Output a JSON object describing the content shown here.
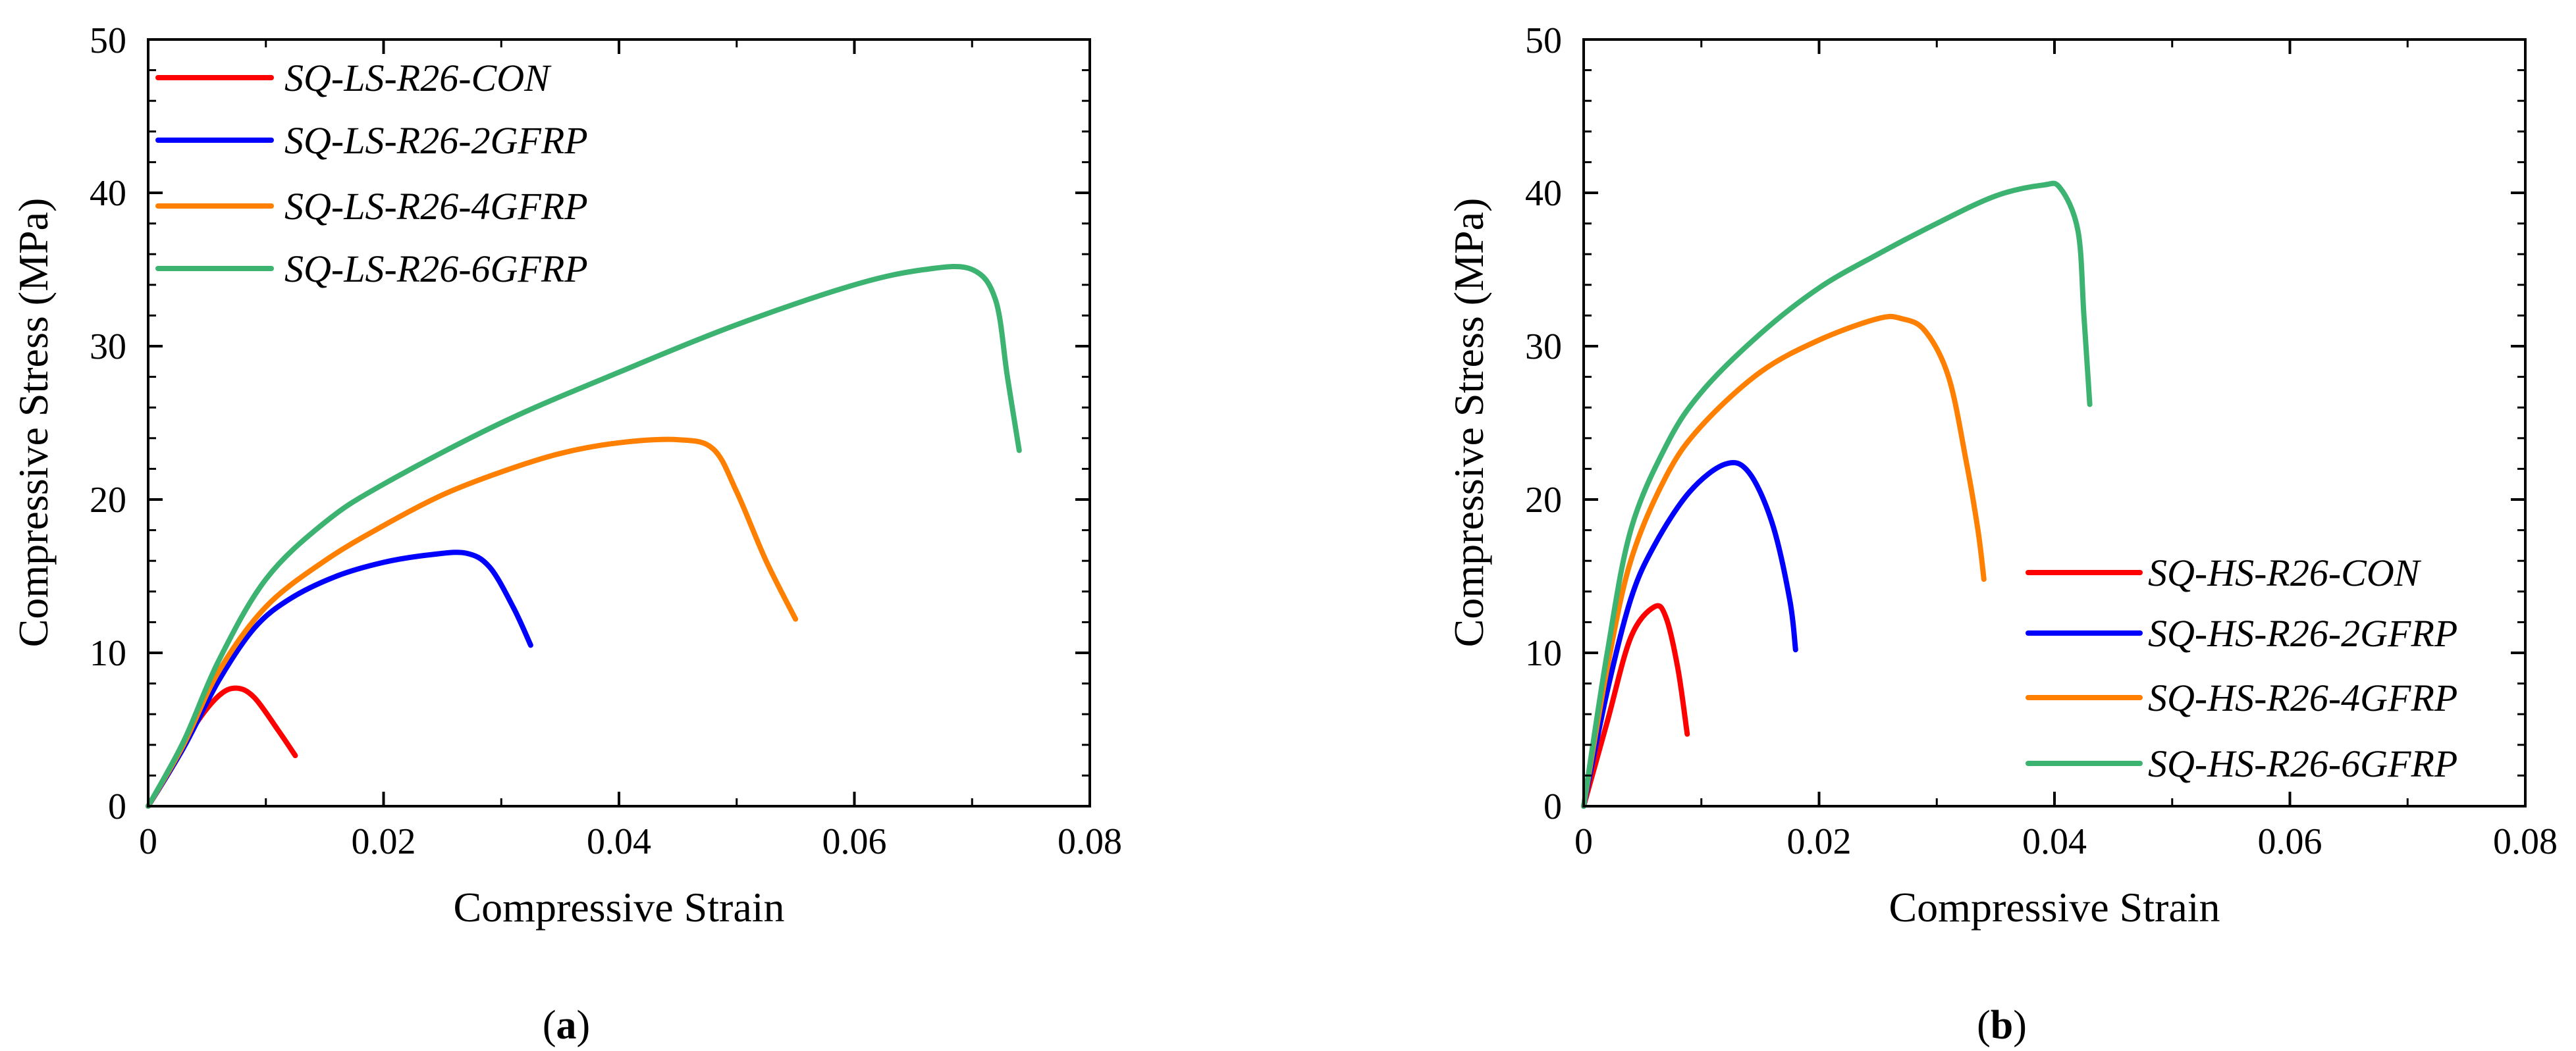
{
  "chart_data": [
    {
      "type": "line",
      "panel": "a",
      "caption": "a",
      "xlabel": "Compressive Strain",
      "ylabel": "Compressive Stress (MPa)",
      "xlim": [
        0,
        0.08
      ],
      "ylim": [
        0,
        50
      ],
      "xticks": [
        0,
        0.02,
        0.04,
        0.06,
        0.08
      ],
      "xtick_labels": [
        "0",
        "0.02",
        "0.04",
        "0.06",
        "0.08"
      ],
      "yticks": [
        0,
        10,
        20,
        30,
        40,
        50
      ],
      "ytick_labels": [
        "0",
        "10",
        "20",
        "30",
        "40",
        "50"
      ],
      "legend_position": "top-left",
      "grid": false,
      "series": [
        {
          "name": "SQ-LS-R26-CON",
          "color": "#ff0000",
          "x": [
            0,
            0.002,
            0.004,
            0.006,
            0.0075,
            0.009,
            0.011,
            0.0125
          ],
          "y": [
            0,
            2.5,
            5.3,
            7.2,
            7.7,
            7.1,
            5.0,
            3.3
          ]
        },
        {
          "name": "SQ-LS-R26-2GFRP",
          "color": "#0000ff",
          "x": [
            0,
            0.003,
            0.006,
            0.009,
            0.012,
            0.016,
            0.02,
            0.024,
            0.027,
            0.029,
            0.031,
            0.0325
          ],
          "y": [
            0,
            3.8,
            8.2,
            11.6,
            13.5,
            15.0,
            15.9,
            16.4,
            16.5,
            15.6,
            13.0,
            10.5
          ]
        },
        {
          "name": "SQ-LS-R26-4GFRP",
          "color": "#ff7f00",
          "x": [
            0,
            0.003,
            0.006,
            0.01,
            0.015,
            0.02,
            0.025,
            0.03,
            0.035,
            0.04,
            0.045,
            0.048,
            0.05,
            0.0525,
            0.055
          ],
          "y": [
            0,
            4.0,
            8.8,
            13.0,
            16.0,
            18.3,
            20.3,
            21.8,
            23.0,
            23.7,
            23.9,
            23.3,
            20.5,
            16.0,
            12.2
          ]
        },
        {
          "name": "SQ-LS-R26-6GFRP",
          "color": "#3cb371",
          "x": [
            0,
            0.003,
            0.006,
            0.01,
            0.015,
            0.02,
            0.03,
            0.04,
            0.05,
            0.06,
            0.066,
            0.07,
            0.072,
            0.073,
            0.074
          ],
          "y": [
            0,
            4.2,
            9.5,
            14.8,
            18.5,
            21.0,
            25.0,
            28.3,
            31.4,
            34.0,
            35.0,
            35.0,
            33.0,
            28.0,
            23.2
          ]
        }
      ]
    },
    {
      "type": "line",
      "panel": "b",
      "caption": "b",
      "xlabel": "Compressive Strain",
      "ylabel": "Compressive Stress (MPa)",
      "xlim": [
        0,
        0.08
      ],
      "ylim": [
        0,
        50
      ],
      "xticks": [
        0,
        0.02,
        0.04,
        0.06,
        0.08
      ],
      "xtick_labels": [
        "0",
        "0.02",
        "0.04",
        "0.06",
        "0.08"
      ],
      "yticks": [
        0,
        10,
        20,
        30,
        40,
        50
      ],
      "ytick_labels": [
        "0",
        "10",
        "20",
        "30",
        "40",
        "50"
      ],
      "legend_position": "bottom-right",
      "grid": false,
      "series": [
        {
          "name": "SQ-HS-R26-CON",
          "color": "#ff0000",
          "x": [
            0,
            0.002,
            0.004,
            0.006,
            0.007,
            0.008,
            0.0088
          ],
          "y": [
            0,
            5.5,
            11.0,
            13.0,
            12.3,
            9.0,
            4.7
          ]
        },
        {
          "name": "SQ-HS-R26-2GFRP",
          "color": "#0000ff",
          "x": [
            0,
            0.002,
            0.004,
            0.006,
            0.009,
            0.012,
            0.014,
            0.016,
            0.0175,
            0.018
          ],
          "y": [
            0,
            7.5,
            13.5,
            17.0,
            20.5,
            22.3,
            21.8,
            18.5,
            13.5,
            10.2
          ]
        },
        {
          "name": "SQ-HS-R26-4GFRP",
          "color": "#ff7f00",
          "x": [
            0,
            0.002,
            0.004,
            0.007,
            0.01,
            0.015,
            0.02,
            0.025,
            0.027,
            0.029,
            0.031,
            0.0325,
            0.0335,
            0.034
          ],
          "y": [
            0,
            9.0,
            16.0,
            21.5,
            24.8,
            28.3,
            30.4,
            31.8,
            31.8,
            31.0,
            28.0,
            22.5,
            18.0,
            14.8
          ]
        },
        {
          "name": "SQ-HS-R26-6GFRP",
          "color": "#3cb371",
          "x": [
            0,
            0.002,
            0.004,
            0.007,
            0.01,
            0.015,
            0.02,
            0.025,
            0.03,
            0.035,
            0.039,
            0.0405,
            0.042,
            0.0425,
            0.043
          ],
          "y": [
            0,
            10.0,
            18.0,
            23.5,
            27.0,
            30.8,
            33.8,
            36.0,
            38.0,
            39.8,
            40.5,
            40.3,
            37.5,
            32.0,
            26.2
          ]
        }
      ]
    }
  ]
}
